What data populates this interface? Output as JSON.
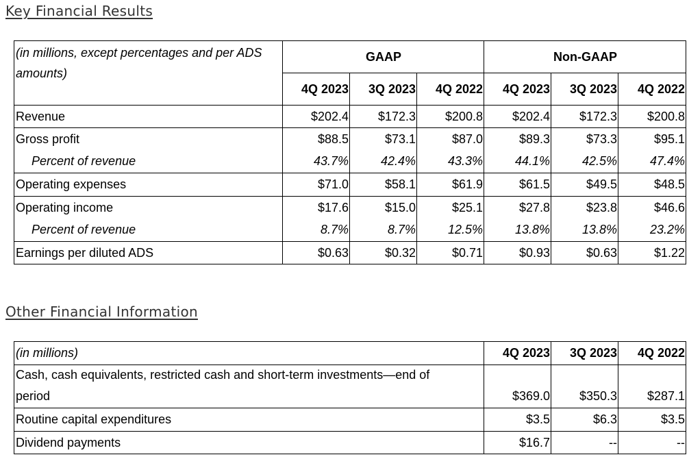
{
  "section1": {
    "title": "Key Financial Results",
    "caption": "(in millions, except percentages and per ADS amounts)",
    "group_gaap": "GAAP",
    "group_nongaap": "Non-GAAP",
    "columns": [
      "4Q 2023",
      "3Q 2023",
      "4Q 2022",
      "4Q 2023",
      "3Q 2023",
      "4Q 2022"
    ],
    "rows": [
      {
        "label": "Revenue",
        "values": [
          "$202.4",
          "$172.3",
          "$200.8",
          "$202.4",
          "$172.3",
          "$200.8"
        ]
      },
      {
        "label": "Gross profit",
        "values": [
          "$88.5",
          "$73.1",
          "$87.0",
          "$89.3",
          "$73.3",
          "$95.1"
        ]
      },
      {
        "label": "Percent of revenue",
        "values": [
          "43.7%",
          "42.4%",
          "43.3%",
          "44.1%",
          "42.5%",
          "47.4%"
        ]
      },
      {
        "label": "Operating expenses",
        "values": [
          "$71.0",
          "$58.1",
          "$61.9",
          "$61.5",
          "$49.5",
          "$48.5"
        ]
      },
      {
        "label": "Operating income",
        "values": [
          "$17.6",
          "$15.0",
          "$25.1",
          "$27.8",
          "$23.8",
          "$46.6"
        ]
      },
      {
        "label": "Percent of revenue",
        "values": [
          "8.7%",
          "8.7%",
          "12.5%",
          "13.8%",
          "13.8%",
          "23.2%"
        ]
      },
      {
        "label": "Earnings per diluted ADS",
        "values": [
          "$0.63",
          "$0.32",
          "$0.71",
          "$0.93",
          "$0.63",
          "$1.22"
        ]
      }
    ]
  },
  "section2": {
    "title": "Other Financial Information",
    "caption": "(in millions)",
    "columns": [
      "4Q 2023",
      "3Q 2023",
      "4Q 2022"
    ],
    "rows": [
      {
        "label_line1": "Cash, cash equivalents, restricted cash and short-term investments—end of",
        "label_line2": "period",
        "values": [
          "$369.0",
          "$350.3",
          "$287.1"
        ]
      },
      {
        "label": "Routine capital expenditures",
        "values": [
          "$3.5",
          "$6.3",
          "$3.5"
        ]
      },
      {
        "label": "Dividend payments",
        "values": [
          "$16.7",
          "--",
          "--"
        ]
      }
    ]
  }
}
